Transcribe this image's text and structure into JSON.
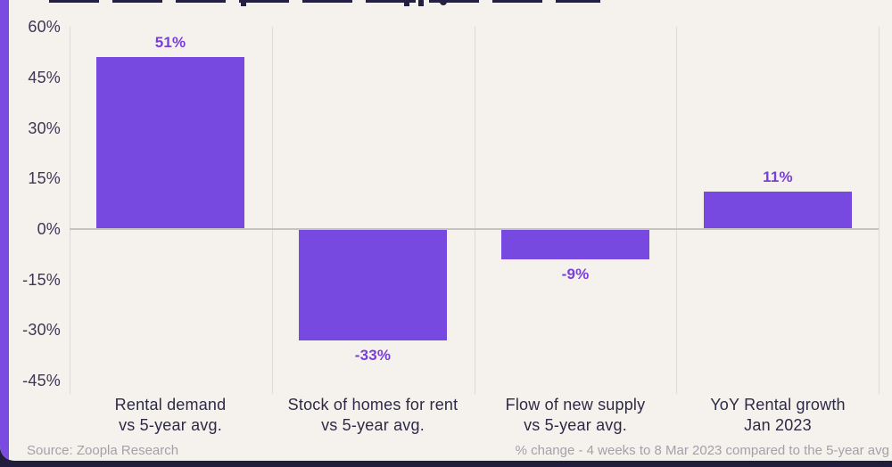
{
  "footer": {
    "source": "Source: Zoopla Research",
    "note": "% change - 4 weeks to 8 Mar 2023 compared to the 5-year avg"
  },
  "colors": {
    "card_background": "#f5f2ee",
    "page_background": "#211d3d",
    "accent_stripe": "#7b4be1",
    "bar": "#7849e1",
    "value_label": "#7a3fd6",
    "axis_text": "#3b3754",
    "category_text": "#2d2a45",
    "footer_text": "#a3a1a8",
    "gridline": "#dcdad6",
    "zero_line": "#c6c4c0",
    "clipped_title": "#232042"
  },
  "chart_data": {
    "type": "bar",
    "categories": [
      [
        "Rental demand",
        "vs 5-year avg."
      ],
      [
        "Stock of homes for rent",
        "vs 5-year avg."
      ],
      [
        "Flow of new supply",
        "vs 5-year avg."
      ],
      [
        "YoY Rental growth",
        "Jan 2023"
      ]
    ],
    "values": [
      51,
      -33,
      -9,
      11
    ],
    "value_labels": [
      "51%",
      "-33%",
      "-9%",
      "11%"
    ],
    "y_ticks": [
      60,
      45,
      30,
      15,
      0,
      -15,
      -30,
      -45
    ],
    "y_tick_labels": [
      "60%",
      "45%",
      "30%",
      "15%",
      "0%",
      "-15%",
      "-30%",
      "-45%"
    ],
    "ylim": [
      -48,
      60
    ],
    "ylabel": "",
    "xlabel": "",
    "legend": "none",
    "grid": "vertical category separators and zero baseline only",
    "bar_color": "#7849e1"
  }
}
